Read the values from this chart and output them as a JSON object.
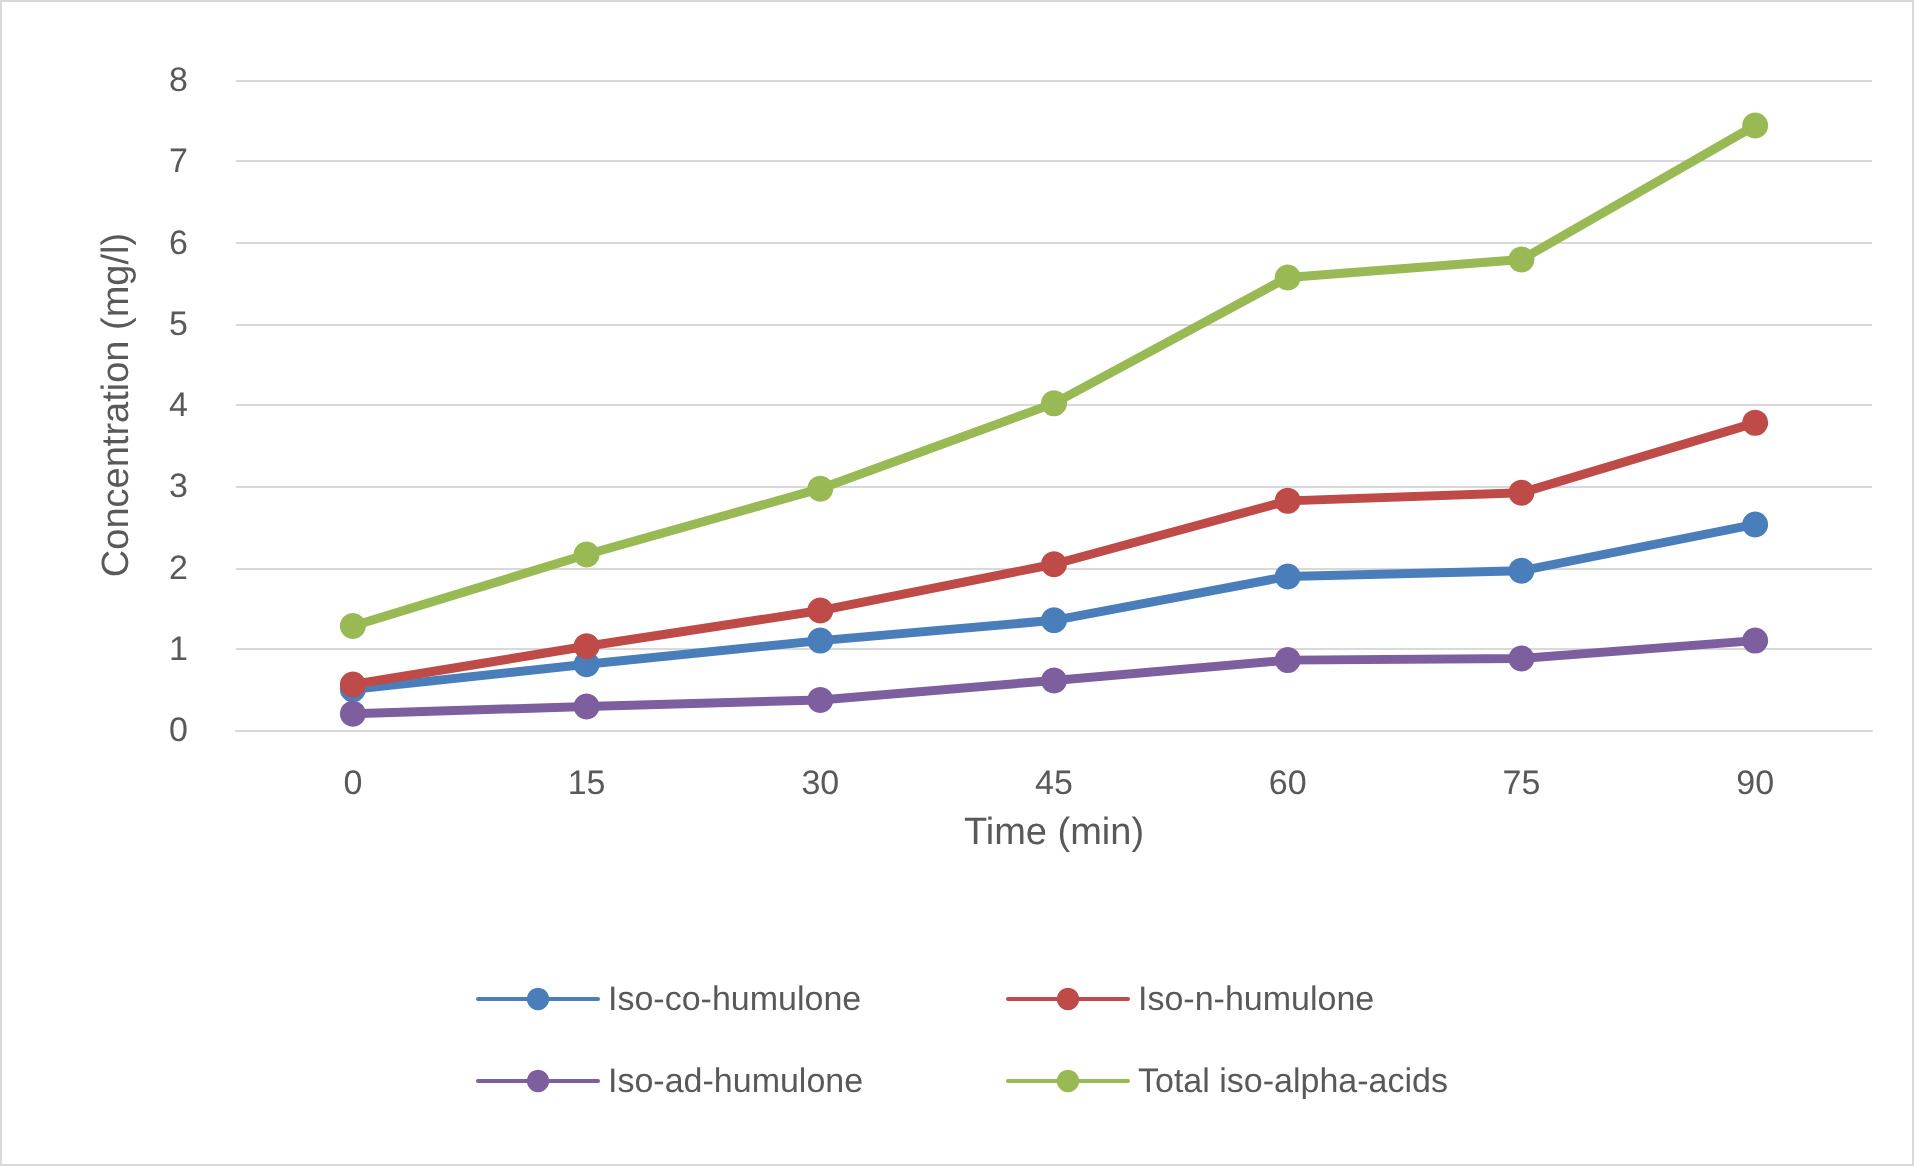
{
  "chart_data": {
    "type": "line",
    "xlabel": "Time (min)",
    "ylabel": "Concentration (mg/l)",
    "categories": [
      "0",
      "15",
      "30",
      "45",
      "60",
      "75",
      "90"
    ],
    "series": [
      {
        "name": "Iso-co-humulone",
        "color": "#4a7ebb",
        "values": [
          0.5,
          0.81,
          1.1,
          1.35,
          1.89,
          1.96,
          2.53
        ]
      },
      {
        "name": "Iso-n-humulone",
        "color": "#be4b48",
        "values": [
          0.56,
          1.03,
          1.47,
          2.04,
          2.82,
          2.92,
          3.78
        ]
      },
      {
        "name": "Iso-ad-humulone",
        "color": "#7d5fa0",
        "values": [
          0.2,
          0.29,
          0.37,
          0.61,
          0.86,
          0.88,
          1.1
        ]
      },
      {
        "name": "Total iso-alpha-acids",
        "color": "#98b954",
        "values": [
          1.28,
          2.16,
          2.97,
          4.02,
          5.57,
          5.79,
          7.44
        ]
      }
    ],
    "ylim": [
      0,
      8
    ],
    "yticks": [
      0,
      1,
      2,
      3,
      4,
      5,
      6,
      7,
      8
    ],
    "grid": "y",
    "legend": "bottom",
    "marker": "circle",
    "line_style": "solid"
  }
}
